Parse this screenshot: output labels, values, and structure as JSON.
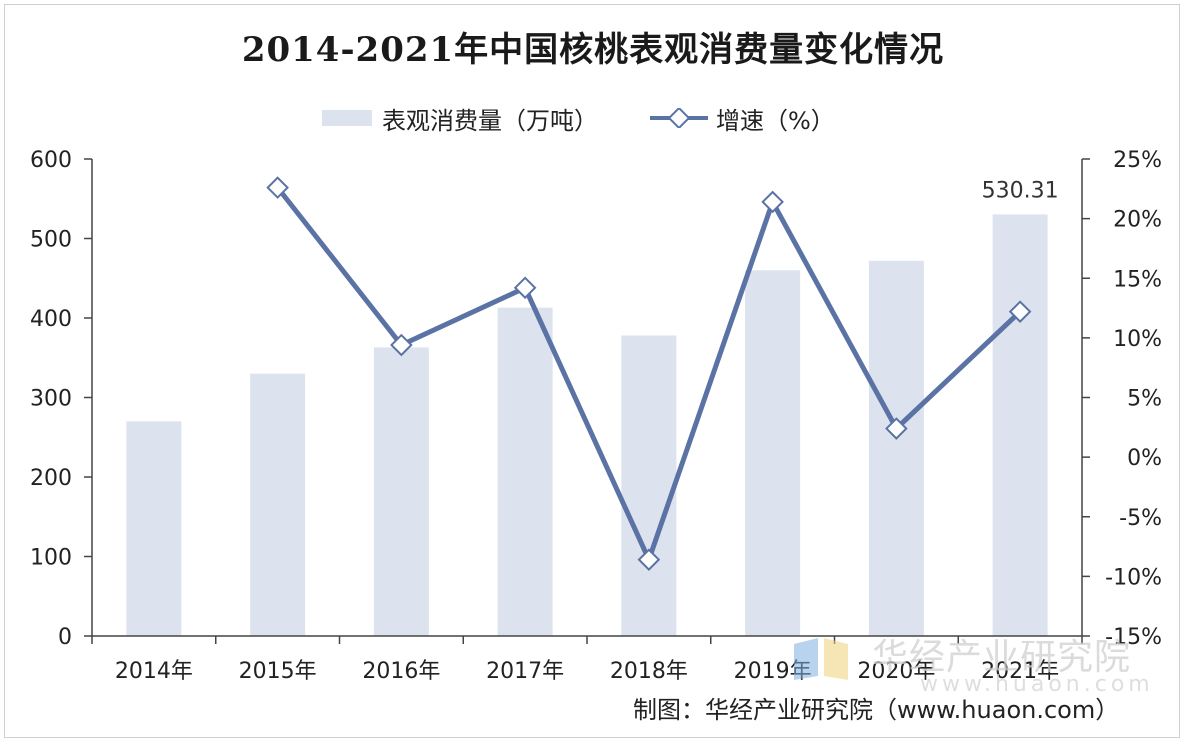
{
  "title": "2014-2021年中国核桃表观消费量变化情况",
  "legend": {
    "bar_label": "表观消费量（万吨）",
    "line_label": "增速（%）"
  },
  "source": "制图：华经产业研究院（www.huaon.com）",
  "watermark": {
    "name": "华经产业研究院",
    "url": "www.huaon.com"
  },
  "colors": {
    "bar": "#dde3ee",
    "line": "#5b73a4",
    "marker_fill": "#ffffff",
    "axis": "#444444"
  },
  "chart_data": {
    "type": "bar",
    "categories": [
      "2014年",
      "2015年",
      "2016年",
      "2017年",
      "2018年",
      "2019年",
      "2020年",
      "2021年"
    ],
    "series": [
      {
        "name": "表观消费量（万吨）",
        "type": "bar",
        "axis": "left",
        "values": [
          270,
          330,
          363,
          413,
          378,
          460,
          472,
          530.31
        ]
      },
      {
        "name": "增速（%）",
        "type": "line",
        "axis": "right",
        "values": [
          null,
          22.6,
          9.4,
          14.2,
          -8.6,
          21.4,
          2.4,
          12.2
        ]
      }
    ],
    "data_labels": [
      {
        "category": "2021年",
        "text": "530.31"
      }
    ],
    "y_left": {
      "min": 0,
      "max": 600,
      "ticks": [
        "0",
        "100",
        "200",
        "300",
        "400",
        "500",
        "600"
      ]
    },
    "y_right": {
      "min": -15,
      "max": 25,
      "ticks": [
        "-15%",
        "-10%",
        "-5%",
        "0%",
        "5%",
        "10%",
        "15%",
        "20%",
        "25%"
      ]
    },
    "grid": false,
    "legend_position": "top"
  }
}
